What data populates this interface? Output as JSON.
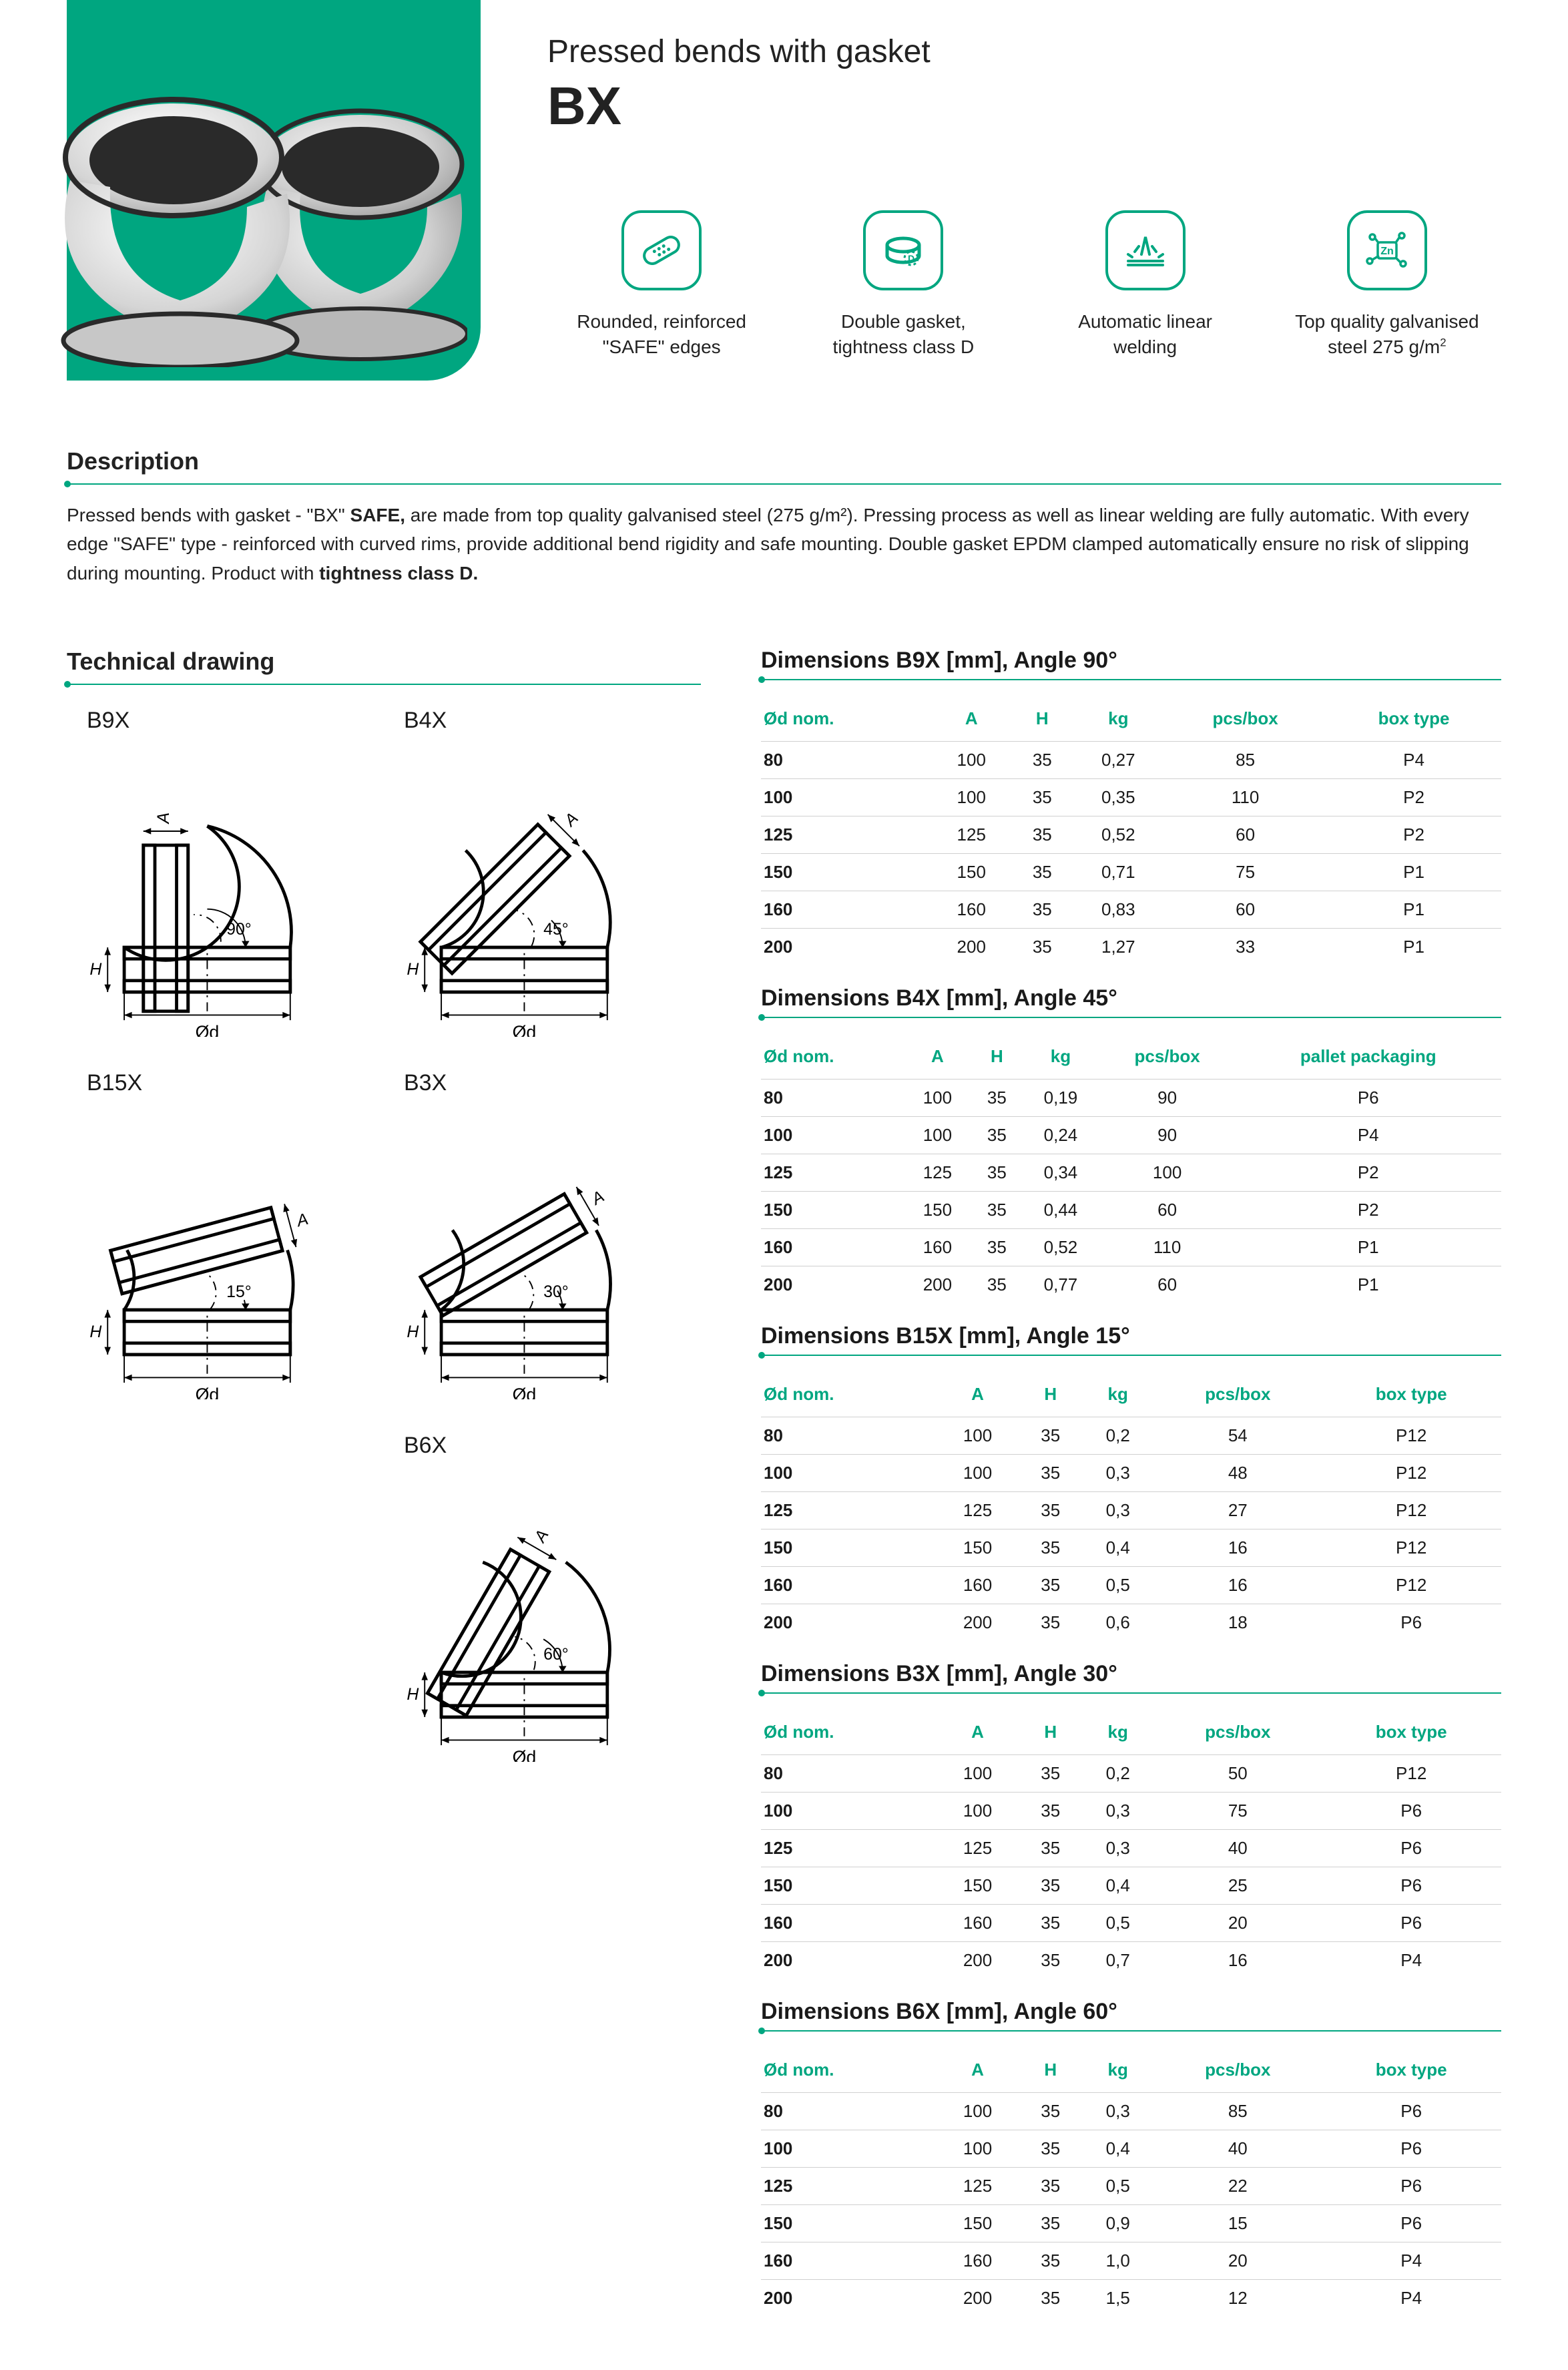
{
  "header": {
    "subtitle": "Pressed bends with gasket",
    "title": "BX"
  },
  "features": [
    {
      "name": "safe-edges",
      "label_l1": "Rounded, reinforced",
      "label_l2": "\"SAFE\" edges"
    },
    {
      "name": "gasket",
      "label_l1": "Double gasket,",
      "label_l2": "tightness class D"
    },
    {
      "name": "welding",
      "label_l1": "Automatic linear",
      "label_l2": "welding"
    },
    {
      "name": "galvanised",
      "label_l1": "Top quality galvanised",
      "label_l2": "steel 275 g/m²"
    }
  ],
  "description": {
    "heading": "Description",
    "text_pre": "Pressed bends with gasket - \"BX\" ",
    "bold1": "SAFE,",
    "text_mid": " are made from top quality galvanised steel (275 g/m²). Pressing process as well as linear welding are fully automatic. With every edge \"SAFE\" type - reinforced with curved rims, provide additional bend rigidity and safe mounting. Double gasket EPDM clamped automatically ensure no risk of slipping during mounting. Product with ",
    "bold2": "tightness class D."
  },
  "tech_drawing_heading": "Technical drawing",
  "drawings": [
    {
      "id": "B9X",
      "angle_label": "90°"
    },
    {
      "id": "B4X",
      "angle_label": "45°"
    },
    {
      "id": "B15X",
      "angle_label": "15°"
    },
    {
      "id": "B3X",
      "angle_label": "30°"
    },
    {
      "id": "",
      "angle_label": ""
    },
    {
      "id": "B6X",
      "angle_label": "60°"
    }
  ],
  "common_dim_labels": {
    "A": "A",
    "H": "H",
    "Od": "Ød"
  },
  "tables": [
    {
      "title": "Dimensions B9X [mm], Angle 90°",
      "columns": [
        "Ød nom.",
        "A",
        "H",
        "kg",
        "pcs/box",
        "box type"
      ],
      "rows": [
        [
          "80",
          "100",
          "35",
          "0,27",
          "85",
          "P4"
        ],
        [
          "100",
          "100",
          "35",
          "0,35",
          "110",
          "P2"
        ],
        [
          "125",
          "125",
          "35",
          "0,52",
          "60",
          "P2"
        ],
        [
          "150",
          "150",
          "35",
          "0,71",
          "75",
          "P1"
        ],
        [
          "160",
          "160",
          "35",
          "0,83",
          "60",
          "P1"
        ],
        [
          "200",
          "200",
          "35",
          "1,27",
          "33",
          "P1"
        ]
      ]
    },
    {
      "title": "Dimensions B4X [mm], Angle 45°",
      "columns": [
        "Ød nom.",
        "A",
        "H",
        "kg",
        "pcs/box",
        "pallet packaging"
      ],
      "rows": [
        [
          "80",
          "100",
          "35",
          "0,19",
          "90",
          "P6"
        ],
        [
          "100",
          "100",
          "35",
          "0,24",
          "90",
          "P4"
        ],
        [
          "125",
          "125",
          "35",
          "0,34",
          "100",
          "P2"
        ],
        [
          "150",
          "150",
          "35",
          "0,44",
          "60",
          "P2"
        ],
        [
          "160",
          "160",
          "35",
          "0,52",
          "110",
          "P1"
        ],
        [
          "200",
          "200",
          "35",
          "0,77",
          "60",
          "P1"
        ]
      ]
    },
    {
      "title": "Dimensions B15X [mm], Angle 15°",
      "columns": [
        "Ød nom.",
        "A",
        "H",
        "kg",
        "pcs/box",
        "box type"
      ],
      "rows": [
        [
          "80",
          "100",
          "35",
          "0,2",
          "54",
          "P12"
        ],
        [
          "100",
          "100",
          "35",
          "0,3",
          "48",
          "P12"
        ],
        [
          "125",
          "125",
          "35",
          "0,3",
          "27",
          "P12"
        ],
        [
          "150",
          "150",
          "35",
          "0,4",
          "16",
          "P12"
        ],
        [
          "160",
          "160",
          "35",
          "0,5",
          "16",
          "P12"
        ],
        [
          "200",
          "200",
          "35",
          "0,6",
          "18",
          "P6"
        ]
      ]
    },
    {
      "title": "Dimensions B3X [mm], Angle 30°",
      "columns": [
        "Ød nom.",
        "A",
        "H",
        "kg",
        "pcs/box",
        "box type"
      ],
      "rows": [
        [
          "80",
          "100",
          "35",
          "0,2",
          "50",
          "P12"
        ],
        [
          "100",
          "100",
          "35",
          "0,3",
          "75",
          "P6"
        ],
        [
          "125",
          "125",
          "35",
          "0,3",
          "40",
          "P6"
        ],
        [
          "150",
          "150",
          "35",
          "0,4",
          "25",
          "P6"
        ],
        [
          "160",
          "160",
          "35",
          "0,5",
          "20",
          "P6"
        ],
        [
          "200",
          "200",
          "35",
          "0,7",
          "16",
          "P4"
        ]
      ]
    },
    {
      "title": "Dimensions B6X [mm], Angle 60°",
      "columns": [
        "Ød nom.",
        "A",
        "H",
        "kg",
        "pcs/box",
        "box type"
      ],
      "rows": [
        [
          "80",
          "100",
          "35",
          "0,3",
          "85",
          "P6"
        ],
        [
          "100",
          "100",
          "35",
          "0,4",
          "40",
          "P6"
        ],
        [
          "125",
          "125",
          "35",
          "0,5",
          "22",
          "P6"
        ],
        [
          "150",
          "150",
          "35",
          "0,9",
          "15",
          "P6"
        ],
        [
          "160",
          "160",
          "35",
          "1,0",
          "20",
          "P4"
        ],
        [
          "200",
          "200",
          "35",
          "1,5",
          "12",
          "P4"
        ]
      ]
    }
  ],
  "colors": {
    "accent": "#00a680",
    "text": "#1a1a1a",
    "rule": "#d0d0d0"
  }
}
